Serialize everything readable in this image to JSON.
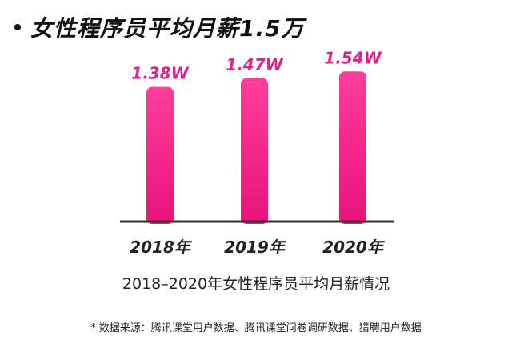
{
  "headline": "女性程序员平均月薪1.5万",
  "colors": {
    "bar_top": "#ff3d9a",
    "bar_bottom": "#e8137a",
    "label": "#e0218a",
    "axis": "#333333"
  },
  "chart_data": {
    "type": "bar",
    "title": "2018–2020年女性程序员平均月薪情况",
    "categories": [
      "2018年",
      "2019年",
      "2020年"
    ],
    "values": [
      1.38,
      1.47,
      1.54
    ],
    "data_labels": [
      "1.38W",
      "1.47W",
      "1.54W"
    ],
    "unit": "W",
    "ylim": [
      0,
      1.6
    ],
    "grid": false,
    "legend": "none"
  },
  "source_note": "* 数据来源：腾讯课堂用户数据、腾讯课堂问卷调研数据、猎聘用户数据"
}
